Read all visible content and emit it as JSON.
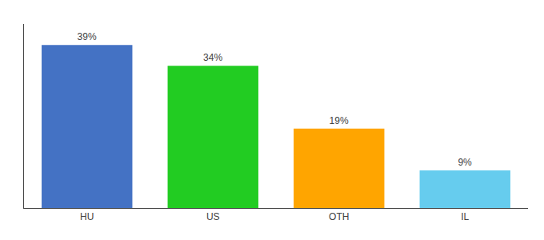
{
  "chart_data": {
    "type": "bar",
    "categories": [
      "HU",
      "US",
      "OTH",
      "IL"
    ],
    "values": [
      39,
      34,
      19,
      9
    ],
    "value_labels": [
      "39%",
      "34%",
      "19%",
      "9%"
    ],
    "colors": [
      "#4472C4",
      "#22CC22",
      "#FFA500",
      "#66CCEE"
    ],
    "ylim": [
      0,
      44
    ],
    "data_labels": true,
    "tick_labels": "x",
    "grid": false
  }
}
